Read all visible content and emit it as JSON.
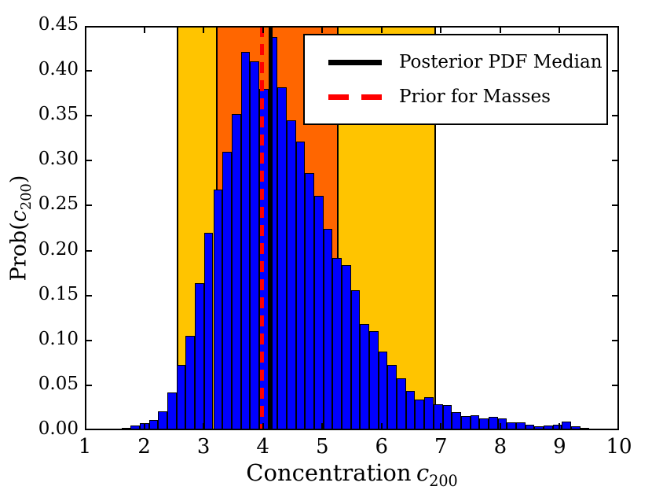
{
  "figure": {
    "background": "#ffffff"
  },
  "chart_data": {
    "type": "bar",
    "subtype": "histogram",
    "title": "",
    "xlabel": {
      "text": "Concentration",
      "var": "c",
      "sub": "200"
    },
    "ylabel": {
      "prefix": "Prob(",
      "var": "c",
      "sub": "200",
      "suffix": ")"
    },
    "xlim": [
      1,
      10
    ],
    "ylim": [
      0,
      0.45
    ],
    "grid": false,
    "legend_position": "upper-right-inside",
    "xticks": [
      {
        "v": 1,
        "label": "1"
      },
      {
        "v": 2,
        "label": "2"
      },
      {
        "v": 3,
        "label": "3"
      },
      {
        "v": 4,
        "label": "4"
      },
      {
        "v": 5,
        "label": "5"
      },
      {
        "v": 6,
        "label": "6"
      },
      {
        "v": 7,
        "label": "7"
      },
      {
        "v": 8,
        "label": "8"
      },
      {
        "v": 9,
        "label": "9"
      },
      {
        "v": 10,
        "label": "10"
      }
    ],
    "yticks": [
      {
        "v": 0.0,
        "label": "0.00"
      },
      {
        "v": 0.05,
        "label": "0.05"
      },
      {
        "v": 0.1,
        "label": "0.10"
      },
      {
        "v": 0.15,
        "label": "0.15"
      },
      {
        "v": 0.2,
        "label": "0.20"
      },
      {
        "v": 0.25,
        "label": "0.25"
      },
      {
        "v": 0.3,
        "label": "0.30"
      },
      {
        "v": 0.35,
        "label": "0.35"
      },
      {
        "v": 0.4,
        "label": "0.40"
      },
      {
        "v": 0.45,
        "label": "0.45"
      }
    ],
    "histogram": {
      "bin_start": 1.618,
      "bin_width": 0.1546,
      "bar_color": "#0000FF",
      "bar_edge_color": "#000000",
      "values": [
        0.003,
        0.005,
        0.008,
        0.011,
        0.021,
        0.042,
        0.073,
        0.105,
        0.164,
        0.22,
        0.268,
        0.31,
        0.352,
        0.421,
        0.411,
        0.38,
        0.438,
        0.382,
        0.345,
        0.321,
        0.286,
        0.261,
        0.224,
        0.192,
        0.184,
        0.156,
        0.118,
        0.11,
        0.088,
        0.073,
        0.058,
        0.044,
        0.034,
        0.037,
        0.029,
        0.028,
        0.02,
        0.016,
        0.017,
        0.013,
        0.015,
        0.013,
        0.009,
        0.009,
        0.006,
        0.004,
        0.005,
        0.006,
        0.01,
        0.004,
        0.003,
        0.002
      ]
    },
    "bands": [
      {
        "name": "outer-credible-band",
        "x0": 2.56,
        "x1": 6.9,
        "color": "#FFC400"
      },
      {
        "name": "inner-credible-band",
        "x0": 3.22,
        "x1": 5.26,
        "color": "#FF6600"
      }
    ],
    "band_edge_color": "#000000",
    "vlines": [
      {
        "name": "posterior-median-line",
        "x": 4.13,
        "color": "#000000",
        "style": "solid"
      },
      {
        "name": "prior-masses-line",
        "x": 3.98,
        "color": "#FF0000",
        "style": "dashed"
      }
    ],
    "legend": {
      "entries": [
        {
          "label": "Posterior PDF Median",
          "color": "#000000",
          "style": "solid"
        },
        {
          "label": "Prior for Masses",
          "color": "#FF0000",
          "style": "dashed"
        }
      ]
    }
  }
}
